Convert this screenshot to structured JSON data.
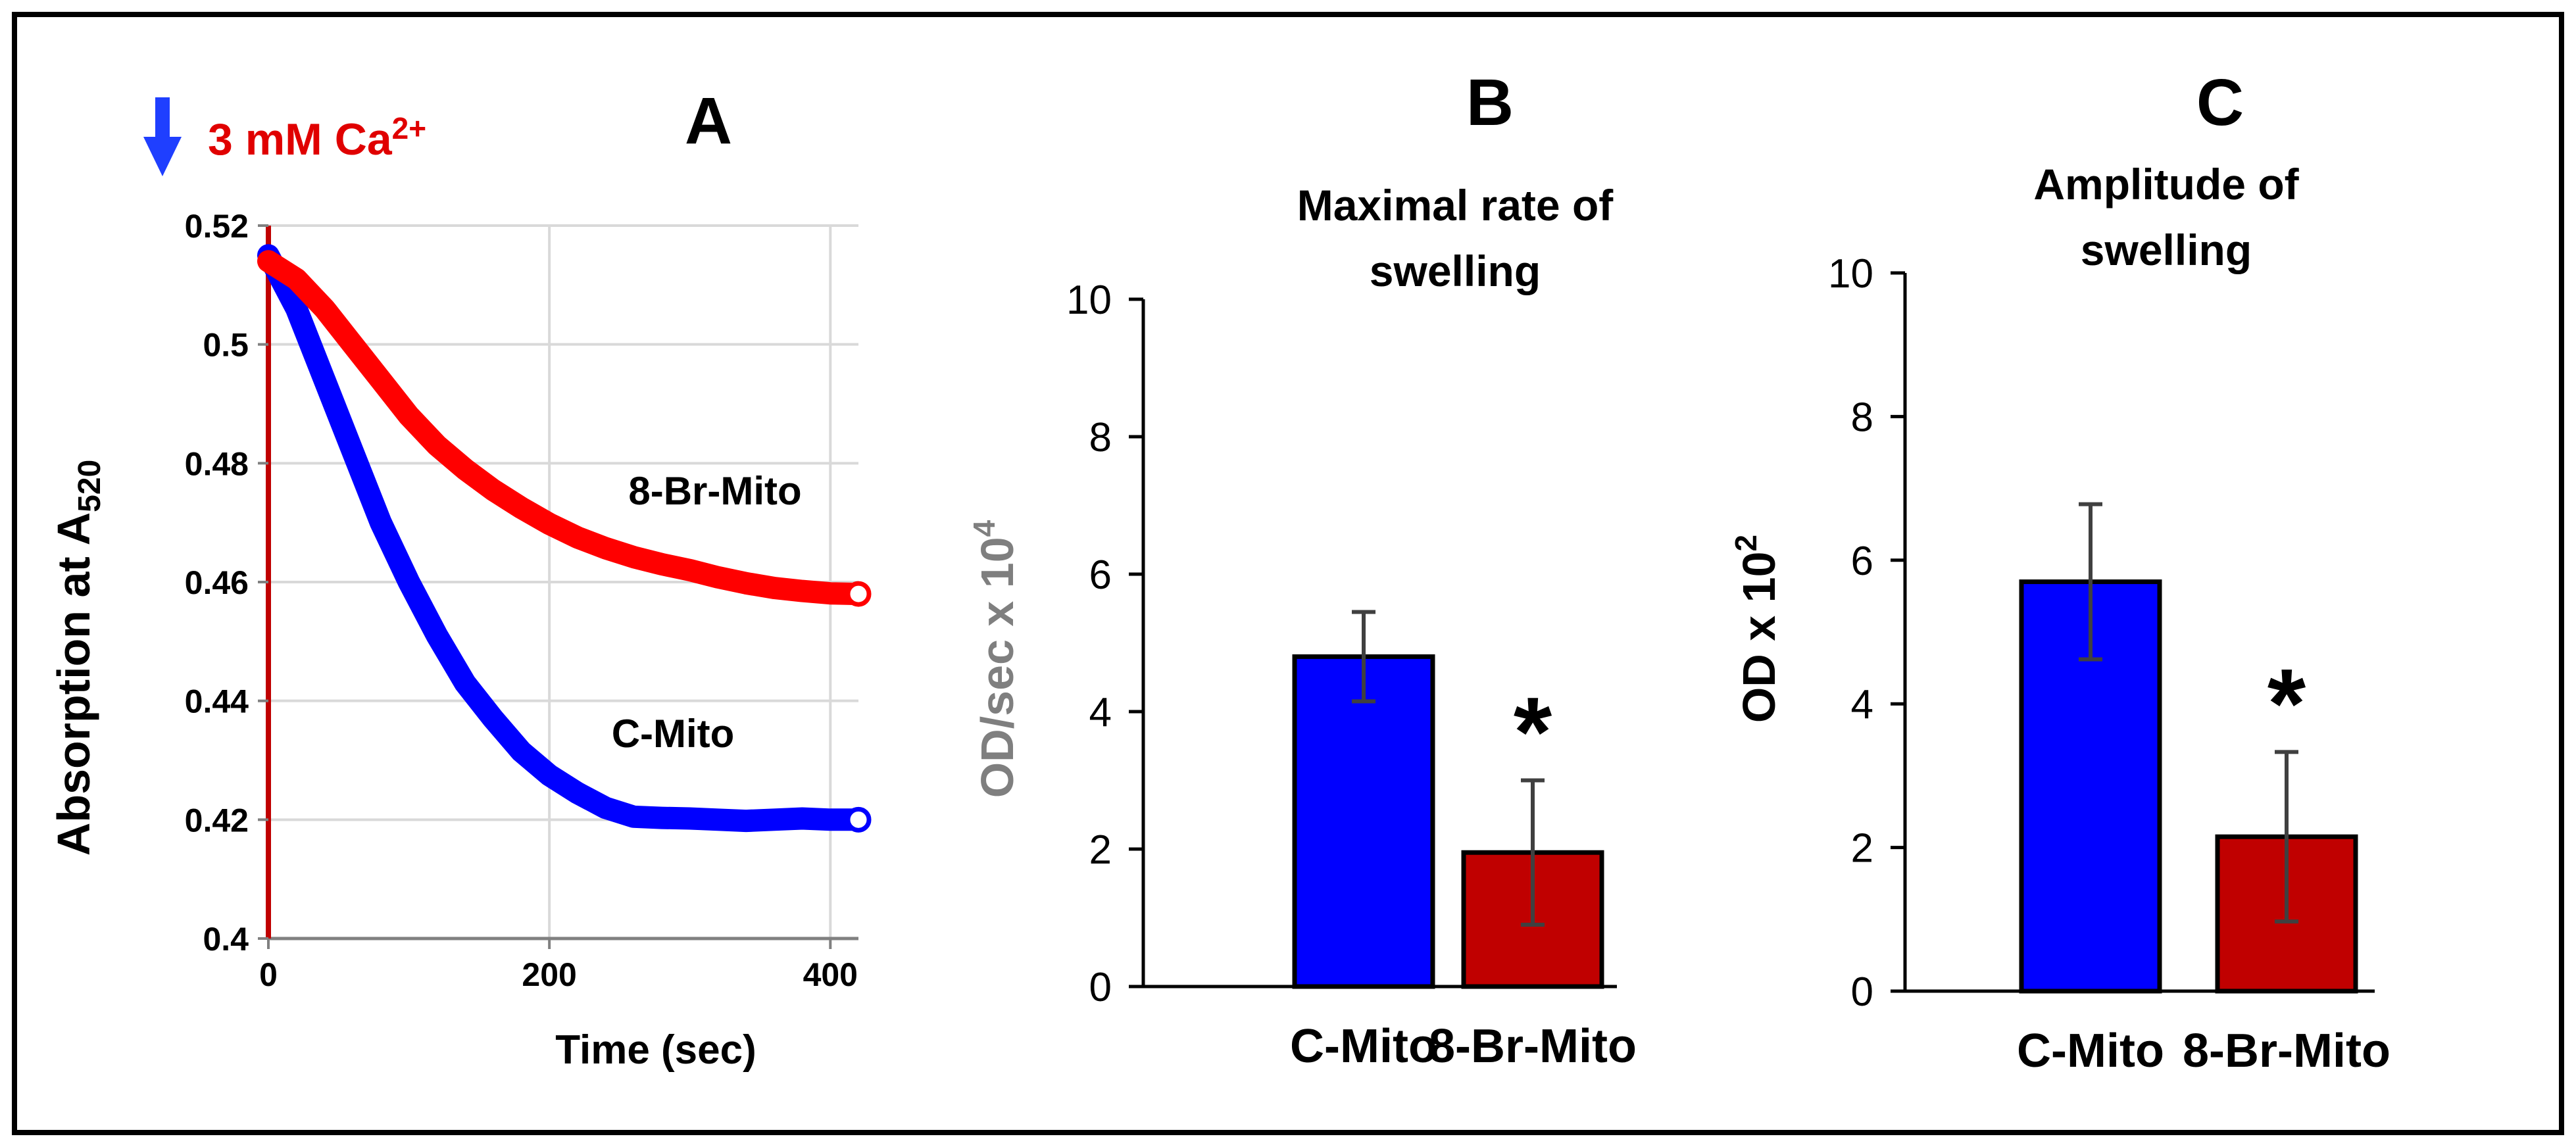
{
  "chart_data": [
    {
      "panel": "A",
      "type": "scatter",
      "panel_label": "A",
      "title": "",
      "xlabel": "Time (sec)",
      "ylabel_main": "Absorption at A",
      "ylabel_sub": "520",
      "xlim": [
        0,
        420
      ],
      "ylim": [
        0.4,
        0.52
      ],
      "x_ticks": [
        "0",
        "200",
        "400"
      ],
      "y_ticks": [
        "0.4",
        "0.42",
        "0.44",
        "0.46",
        "0.48",
        "0.5",
        "0.52"
      ],
      "grid": true,
      "annotation": {
        "arrow": "down-arrow",
        "text": "3 mM Ca",
        "superscript": "2+"
      },
      "series": [
        {
          "name": "8-Br-Mito",
          "color": "#ff0000",
          "x": [
            0,
            20,
            40,
            60,
            80,
            100,
            120,
            140,
            160,
            180,
            200,
            220,
            240,
            260,
            280,
            300,
            320,
            340,
            360,
            380,
            400,
            420
          ],
          "y": [
            0.514,
            0.511,
            0.506,
            0.5,
            0.494,
            0.488,
            0.483,
            0.479,
            0.4755,
            0.4725,
            0.4698,
            0.4675,
            0.4657,
            0.4642,
            0.463,
            0.462,
            0.4608,
            0.4598,
            0.459,
            0.4585,
            0.4581,
            0.458
          ]
        },
        {
          "name": "C-Mito",
          "color": "#0000ff",
          "x": [
            0,
            20,
            40,
            60,
            80,
            100,
            120,
            140,
            160,
            180,
            200,
            220,
            240,
            260,
            280,
            300,
            320,
            340,
            360,
            380,
            400,
            420
          ],
          "y": [
            0.515,
            0.506,
            0.494,
            0.482,
            0.47,
            0.46,
            0.451,
            0.443,
            0.437,
            0.4315,
            0.4275,
            0.4245,
            0.422,
            0.4205,
            0.4203,
            0.4202,
            0.42,
            0.4198,
            0.42,
            0.4202,
            0.42,
            0.42
          ]
        }
      ]
    },
    {
      "panel": "B",
      "type": "bar",
      "panel_label": "B",
      "title_lines": [
        "Maximal rate of",
        "swelling"
      ],
      "ylabel_main": "OD/sec x 10",
      "ylabel_sup": "4",
      "categories": [
        "C-Mito",
        "8-Br-Mito"
      ],
      "values": [
        4.8,
        1.95
      ],
      "errors": [
        0.65,
        1.05
      ],
      "colors": [
        "#0000ff",
        "#c00000"
      ],
      "significance": [
        "",
        "*"
      ],
      "ylim": [
        0,
        10
      ],
      "y_ticks": [
        "0",
        "2",
        "4",
        "6",
        "8",
        "10"
      ]
    },
    {
      "panel": "C",
      "type": "bar",
      "panel_label": "C",
      "title_lines": [
        "Amplitude of",
        "swelling"
      ],
      "ylabel_main": "OD x 10",
      "ylabel_sup": "2",
      "categories": [
        "C-Mito",
        "8-Br-Mito"
      ],
      "values": [
        5.7,
        2.15
      ],
      "errors": [
        1.08,
        1.18
      ],
      "colors": [
        "#0000ff",
        "#c00000"
      ],
      "significance": [
        "",
        "*"
      ],
      "ylim": [
        0,
        10
      ],
      "y_ticks": [
        "0",
        "2",
        "4",
        "6",
        "8",
        "10"
      ]
    }
  ]
}
